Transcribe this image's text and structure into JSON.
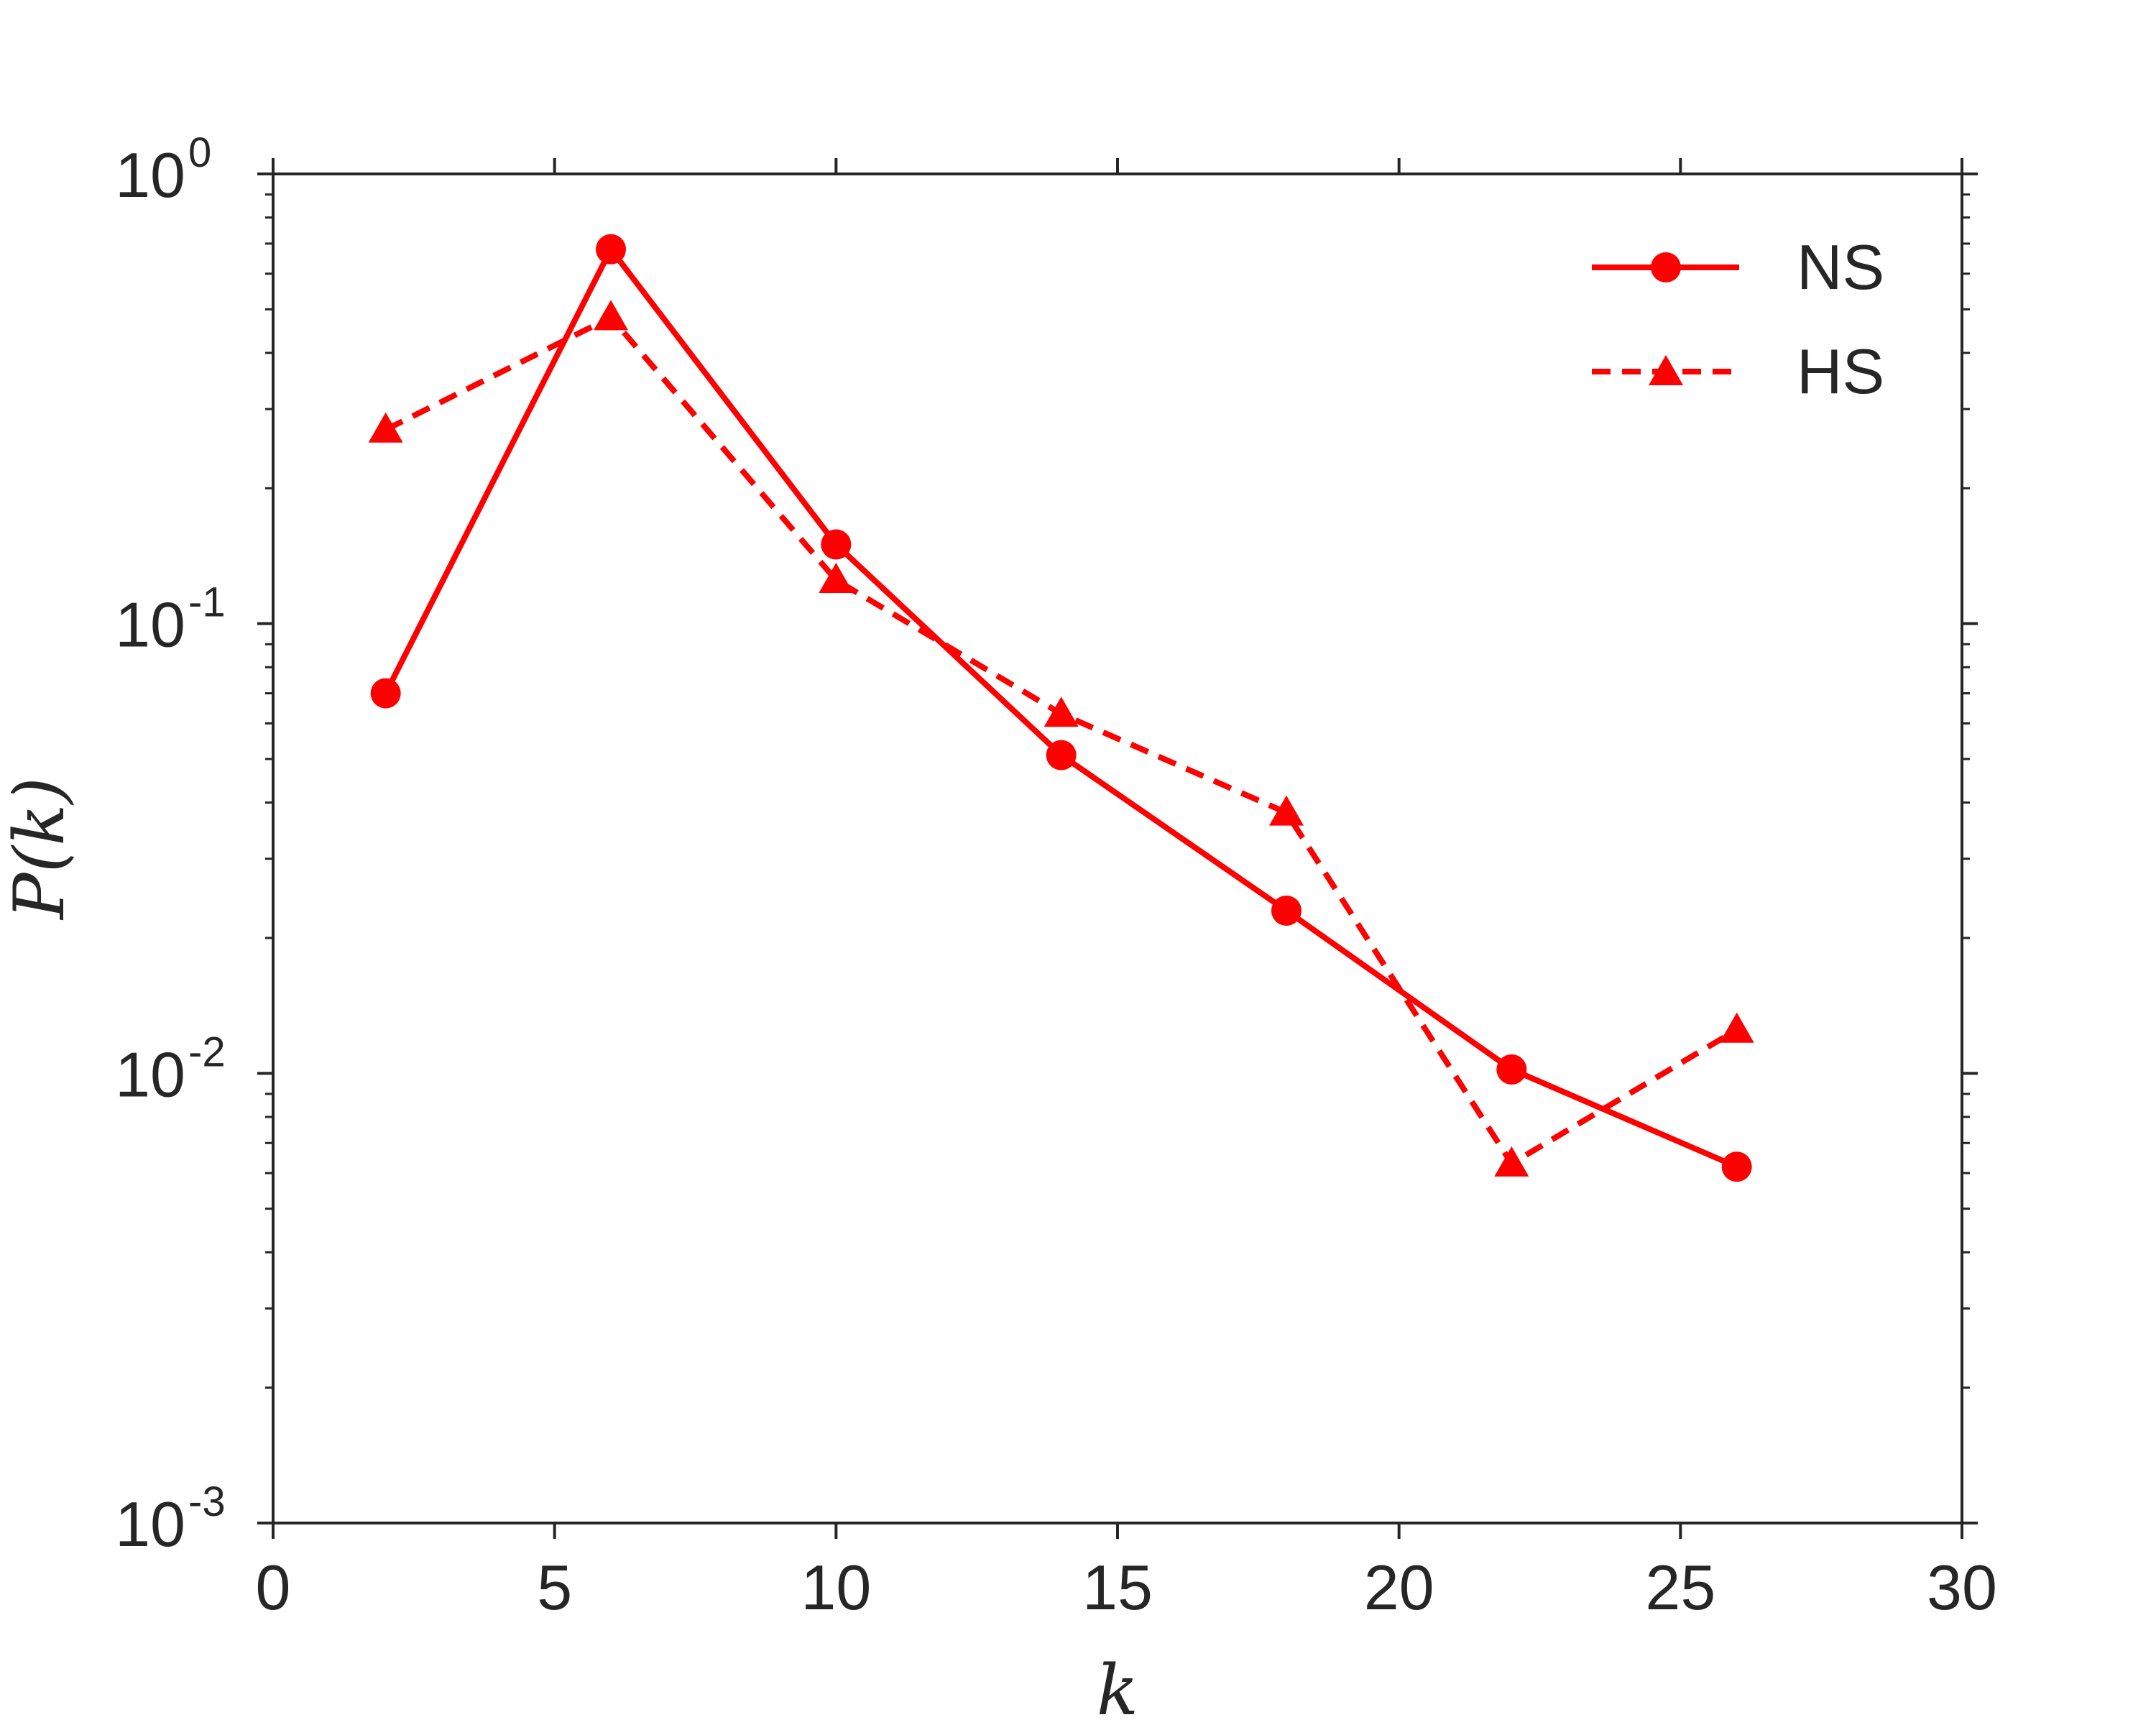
{
  "chart_data": {
    "type": "line",
    "xlabel": "k",
    "ylabel": "P(k)",
    "xlim": [
      0,
      30
    ],
    "ylim": [
      0.001,
      1
    ],
    "yscale": "log",
    "grid": false,
    "legend_placement": "top-right",
    "xticks": [
      {
        "value": 0,
        "label": "0"
      },
      {
        "value": 5,
        "label": "5"
      },
      {
        "value": 10,
        "label": "10"
      },
      {
        "value": 15,
        "label": "15"
      },
      {
        "value": 20,
        "label": "20"
      },
      {
        "value": 25,
        "label": "25"
      },
      {
        "value": 30,
        "label": "30"
      }
    ],
    "yticks": [
      {
        "value": 1,
        "base": "10",
        "exp": "0"
      },
      {
        "value": 0.1,
        "base": "10",
        "exp": "-1"
      },
      {
        "value": 0.01,
        "base": "10",
        "exp": "-2"
      },
      {
        "value": 0.001,
        "base": "10",
        "exp": "-3"
      }
    ],
    "series": [
      {
        "name": "NS",
        "color": "#ff0000",
        "line_style": "solid",
        "marker": "circle",
        "x": [
          2,
          6,
          10,
          14,
          18,
          22,
          26
        ],
        "y": [
          0.07,
          0.68,
          0.15,
          0.051,
          0.023,
          0.0102,
          0.0062
        ]
      },
      {
        "name": "HS",
        "color": "#ff0000",
        "line_style": "dashed",
        "marker": "triangle",
        "x": [
          2,
          6,
          10,
          14,
          18,
          22,
          26
        ],
        "y": [
          0.27,
          0.48,
          0.125,
          0.063,
          0.038,
          0.0063,
          0.0125
        ]
      }
    ]
  }
}
